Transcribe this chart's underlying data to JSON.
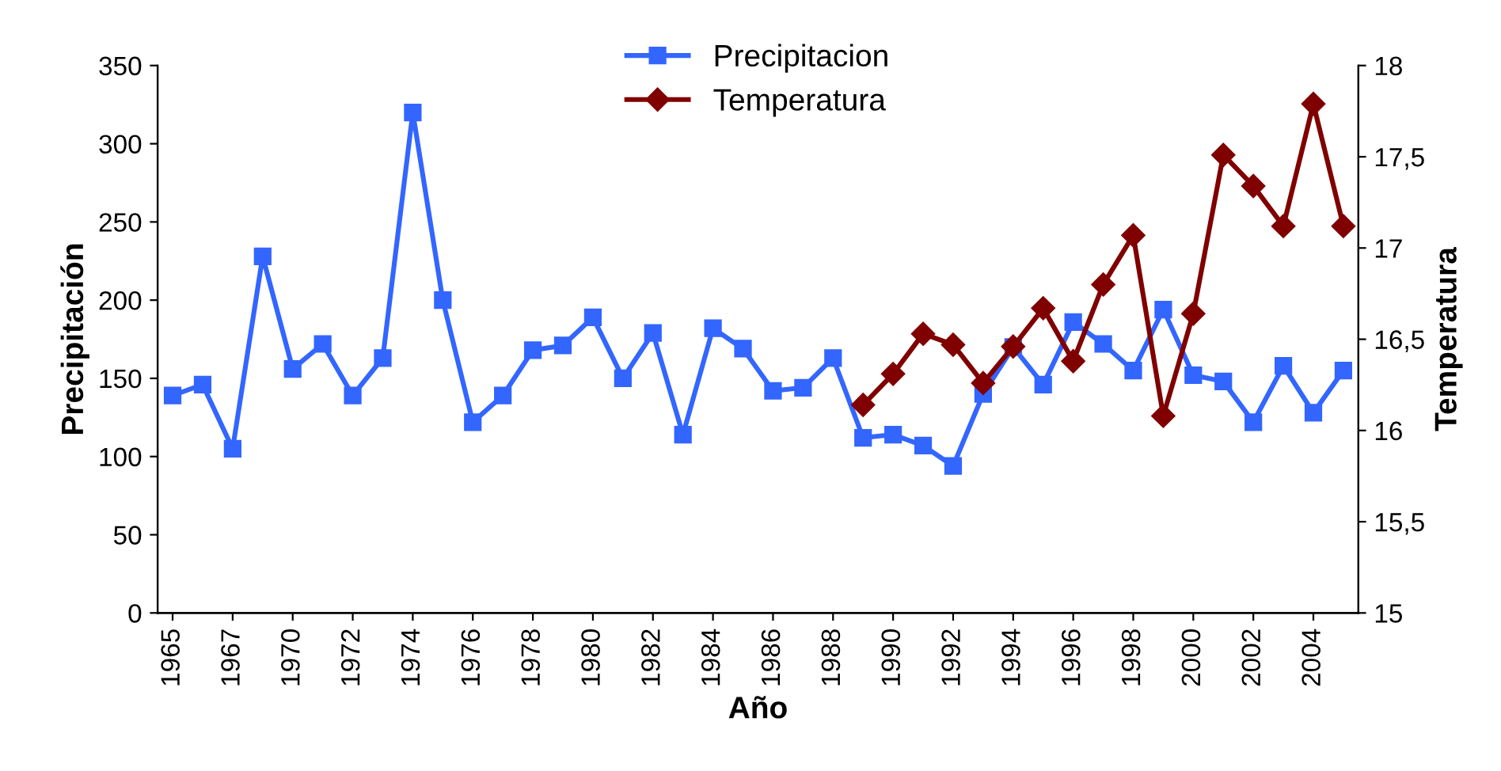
{
  "chart_data": {
    "type": "line",
    "xlabel": "Año",
    "ylabel": "Precipitación",
    "y2label": "Temperatura",
    "categories": [
      "1965",
      null,
      "1967",
      null,
      "1970",
      null,
      "1972",
      null,
      "1974",
      null,
      "1976",
      null,
      "1978",
      null,
      "1980",
      null,
      "1982",
      null,
      "1984",
      null,
      "1986",
      null,
      "1988",
      null,
      "1990",
      null,
      "1992",
      null,
      "1994",
      null,
      "1996",
      null,
      "1998",
      null,
      "2000",
      null,
      "2002",
      null,
      "2004",
      null
    ],
    "series": [
      {
        "name": "Precipitacion",
        "color": "#3366ff",
        "marker": "square",
        "values": [
          139,
          146,
          105,
          228,
          156,
          172,
          139,
          163,
          320,
          200,
          122,
          139,
          168,
          171,
          189,
          150,
          179,
          114,
          182,
          169,
          142,
          144,
          163,
          112,
          114,
          107,
          94,
          140,
          170,
          146,
          186,
          172,
          155,
          194,
          152,
          148,
          122,
          158,
          128,
          155
        ]
      },
      {
        "name": "Temperatura",
        "color": "#800000",
        "marker": "diamond",
        "axis": "y2",
        "values": [
          null,
          null,
          null,
          null,
          null,
          null,
          null,
          null,
          null,
          null,
          null,
          null,
          null,
          null,
          null,
          null,
          null,
          null,
          null,
          null,
          null,
          null,
          null,
          16.14,
          16.31,
          16.53,
          16.47,
          16.26,
          16.46,
          16.67,
          16.38,
          16.8,
          17.07,
          16.08,
          16.64,
          17.51,
          17.34,
          17.12,
          17.79,
          17.12
        ]
      }
    ],
    "ylim": [
      0,
      350
    ],
    "yticks": [
      0,
      50,
      100,
      150,
      200,
      250,
      300,
      350
    ],
    "y2lim": [
      15,
      18
    ],
    "y2ticks": [
      15,
      {
        "value": 15.5,
        "label": "15,5"
      },
      16,
      {
        "value": 16.5,
        "label": "16,5"
      },
      17,
      {
        "value": 17.5,
        "label": "17,5"
      },
      18
    ],
    "legend": "top",
    "grid": false
  }
}
